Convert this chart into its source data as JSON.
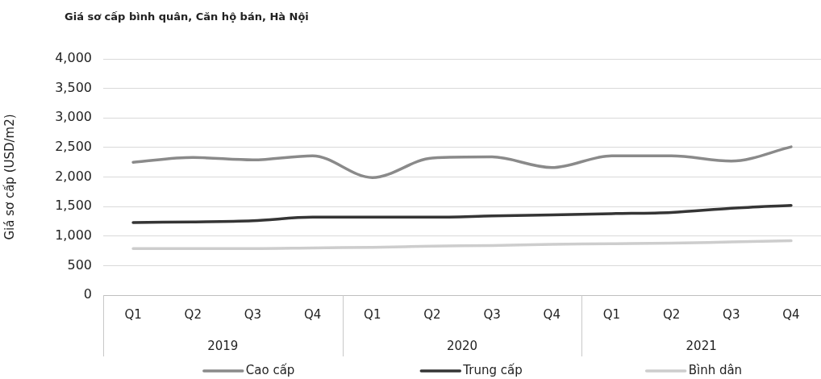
{
  "chart_data": {
    "type": "line",
    "title": "Giá sơ cấp bình quân, Căn hộ bán, Hà Nội",
    "ylabel": "Giá sơ cấp (USD/m2)",
    "categories": [
      "Q1",
      "Q2",
      "Q3",
      "Q4",
      "Q1",
      "Q2",
      "Q3",
      "Q4",
      "Q1",
      "Q2",
      "Q3",
      "Q4"
    ],
    "annotations": [
      "2019",
      "2020",
      "2021"
    ],
    "series": [
      {
        "name": "Cao cấp",
        "color": "#8a8a8a",
        "values": [
          2250,
          2330,
          2290,
          2360,
          1990,
          2320,
          2340,
          2160,
          2360,
          2360,
          2270,
          2510
        ]
      },
      {
        "name": "Trung cấp",
        "color": "#353535",
        "values": [
          1230,
          1240,
          1260,
          1320,
          1320,
          1320,
          1340,
          1360,
          1380,
          1400,
          1470,
          1520
        ]
      },
      {
        "name": "Bình dân",
        "color": "#cdcdcd",
        "values": [
          790,
          790,
          790,
          800,
          810,
          830,
          840,
          860,
          870,
          880,
          900,
          920
        ]
      }
    ],
    "ylim": [
      0,
      4000
    ],
    "yticks": [
      0,
      500,
      {
        "value": 1000,
        "label": "1,000"
      },
      {
        "value": 1500,
        "label": "1,500"
      },
      {
        "value": 2000,
        "label": "2,000"
      },
      {
        "value": 2500,
        "label": "2,500"
      },
      {
        "value": 3000,
        "label": "3,000"
      },
      {
        "value": 3500,
        "label": "3,500"
      },
      {
        "value": 4000,
        "label": "4,000"
      }
    ],
    "grid": "y",
    "legend": "bottom",
    "marker": "none",
    "line_style": "solid"
  }
}
